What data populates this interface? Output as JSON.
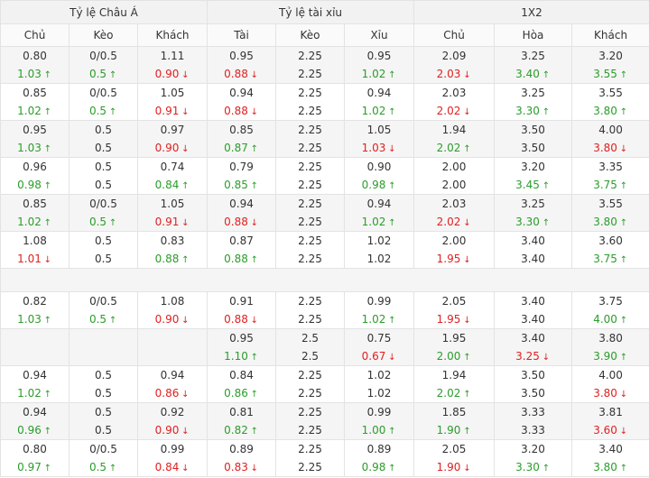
{
  "groups": [
    {
      "label": "Tỷ lệ Châu Á"
    },
    {
      "label": "Tỷ lệ tài xỉu"
    },
    {
      "label": "1X2"
    }
  ],
  "columns": [
    "Chủ",
    "Kèo",
    "Khách",
    "Tài",
    "Kèo",
    "Xỉu",
    "Chủ",
    "Hòa",
    "Khách"
  ],
  "rows": [
    {
      "cells": [
        [
          "0.80",
          "1.03",
          "up"
        ],
        [
          "0/0.5",
          "0.5",
          "up"
        ],
        [
          "1.11",
          "0.90",
          "down"
        ],
        [
          "0.95",
          "0.88",
          "down"
        ],
        [
          "2.25",
          "2.25",
          ""
        ],
        [
          "0.95",
          "1.02",
          "up"
        ],
        [
          "2.09",
          "2.03",
          "down"
        ],
        [
          "3.25",
          "3.40",
          "up"
        ],
        [
          "3.20",
          "3.55",
          "up"
        ]
      ]
    },
    {
      "cells": [
        [
          "0.85",
          "1.02",
          "up"
        ],
        [
          "0/0.5",
          "0.5",
          "up"
        ],
        [
          "1.05",
          "0.91",
          "down"
        ],
        [
          "0.94",
          "0.88",
          "down"
        ],
        [
          "2.25",
          "2.25",
          ""
        ],
        [
          "0.94",
          "1.02",
          "up"
        ],
        [
          "2.03",
          "2.02",
          "down"
        ],
        [
          "3.25",
          "3.30",
          "up"
        ],
        [
          "3.55",
          "3.80",
          "up"
        ]
      ]
    },
    {
      "cells": [
        [
          "0.95",
          "1.03",
          "up"
        ],
        [
          "0.5",
          "0.5",
          ""
        ],
        [
          "0.97",
          "0.90",
          "down"
        ],
        [
          "0.85",
          "0.87",
          "up"
        ],
        [
          "2.25",
          "2.25",
          ""
        ],
        [
          "1.05",
          "1.03",
          "down"
        ],
        [
          "1.94",
          "2.02",
          "up"
        ],
        [
          "3.50",
          "3.50",
          ""
        ],
        [
          "4.00",
          "3.80",
          "down"
        ]
      ]
    },
    {
      "cells": [
        [
          "0.96",
          "0.98",
          "up"
        ],
        [
          "0.5",
          "0.5",
          ""
        ],
        [
          "0.74",
          "0.84",
          "up"
        ],
        [
          "0.79",
          "0.85",
          "up"
        ],
        [
          "2.25",
          "2.25",
          ""
        ],
        [
          "0.90",
          "0.98",
          "up"
        ],
        [
          "2.00",
          "2.00",
          ""
        ],
        [
          "3.20",
          "3.45",
          "up"
        ],
        [
          "3.35",
          "3.75",
          "up"
        ]
      ]
    },
    {
      "cells": [
        [
          "0.85",
          "1.02",
          "up"
        ],
        [
          "0/0.5",
          "0.5",
          "up"
        ],
        [
          "1.05",
          "0.91",
          "down"
        ],
        [
          "0.94",
          "0.88",
          "down"
        ],
        [
          "2.25",
          "2.25",
          ""
        ],
        [
          "0.94",
          "1.02",
          "up"
        ],
        [
          "2.03",
          "2.02",
          "down"
        ],
        [
          "3.25",
          "3.30",
          "up"
        ],
        [
          "3.55",
          "3.80",
          "up"
        ]
      ]
    },
    {
      "cells": [
        [
          "1.08",
          "1.01",
          "down"
        ],
        [
          "0.5",
          "0.5",
          ""
        ],
        [
          "0.83",
          "0.88",
          "up"
        ],
        [
          "0.87",
          "0.88",
          "up"
        ],
        [
          "2.25",
          "2.25",
          ""
        ],
        [
          "1.02",
          "1.02",
          ""
        ],
        [
          "2.00",
          "1.95",
          "down"
        ],
        [
          "3.40",
          "3.40",
          ""
        ],
        [
          "3.60",
          "3.75",
          "up"
        ]
      ]
    },
    {
      "empty": true
    },
    {
      "cells": [
        [
          "0.82",
          "1.03",
          "up"
        ],
        [
          "0/0.5",
          "0.5",
          "up"
        ],
        [
          "1.08",
          "0.90",
          "down"
        ],
        [
          "0.91",
          "0.88",
          "down"
        ],
        [
          "2.25",
          "2.25",
          ""
        ],
        [
          "0.99",
          "1.02",
          "up"
        ],
        [
          "2.05",
          "1.95",
          "down"
        ],
        [
          "3.40",
          "3.40",
          ""
        ],
        [
          "3.75",
          "4.00",
          "up"
        ]
      ]
    },
    {
      "cells": [
        [
          "",
          "",
          ""
        ],
        [
          "",
          "",
          ""
        ],
        [
          "",
          "",
          ""
        ],
        [
          "0.95",
          "1.10",
          "up"
        ],
        [
          "2.5",
          "2.5",
          ""
        ],
        [
          "0.75",
          "0.67",
          "down"
        ],
        [
          "1.95",
          "2.00",
          "up"
        ],
        [
          "3.40",
          "3.25",
          "down"
        ],
        [
          "3.80",
          "3.90",
          "up"
        ]
      ]
    },
    {
      "cells": [
        [
          "0.94",
          "1.02",
          "up"
        ],
        [
          "0.5",
          "0.5",
          ""
        ],
        [
          "0.94",
          "0.86",
          "down"
        ],
        [
          "0.84",
          "0.86",
          "up"
        ],
        [
          "2.25",
          "2.25",
          ""
        ],
        [
          "1.02",
          "1.02",
          ""
        ],
        [
          "1.94",
          "2.02",
          "up"
        ],
        [
          "3.50",
          "3.50",
          ""
        ],
        [
          "4.00",
          "3.80",
          "down"
        ]
      ]
    },
    {
      "cells": [
        [
          "0.94",
          "0.96",
          "up"
        ],
        [
          "0.5",
          "0.5",
          ""
        ],
        [
          "0.92",
          "0.90",
          "down"
        ],
        [
          "0.81",
          "0.82",
          "up"
        ],
        [
          "2.25",
          "2.25",
          ""
        ],
        [
          "0.99",
          "1.00",
          "up"
        ],
        [
          "1.85",
          "1.90",
          "up"
        ],
        [
          "3.33",
          "3.33",
          ""
        ],
        [
          "3.81",
          "3.60",
          "down"
        ]
      ]
    },
    {
      "cells": [
        [
          "0.80",
          "0.97",
          "up"
        ],
        [
          "0/0.5",
          "0.5",
          "up"
        ],
        [
          "0.99",
          "0.84",
          "down"
        ],
        [
          "0.89",
          "0.83",
          "down"
        ],
        [
          "2.25",
          "2.25",
          ""
        ],
        [
          "0.89",
          "0.98",
          "up"
        ],
        [
          "2.05",
          "1.90",
          "down"
        ],
        [
          "3.20",
          "3.30",
          "up"
        ],
        [
          "3.40",
          "3.80",
          "up"
        ]
      ]
    }
  ]
}
